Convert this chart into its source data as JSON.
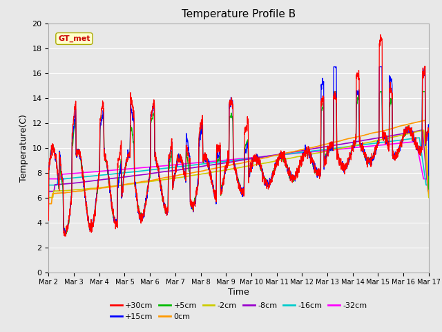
{
  "title": "Temperature Profile B",
  "xlabel": "Time",
  "ylabel": "Temperature(C)",
  "ylim": [
    0,
    20
  ],
  "background_color": "#e8e8e8",
  "grid_color": "white",
  "annotation_text": "GT_met",
  "annotation_bg": "#ffffcc",
  "annotation_fg": "#cc0000",
  "series_colors": {
    "+30cm": "#ff0000",
    "+15cm": "#0000ff",
    "+5cm": "#00bb00",
    "0cm": "#ff9900",
    "-2cm": "#cccc00",
    "-8cm": "#9900cc",
    "-16cm": "#00cccc",
    "-32cm": "#ff00ff"
  },
  "legend_labels": [
    "+30cm",
    "+15cm",
    "+5cm",
    "0cm",
    "-2cm",
    "-8cm",
    "-16cm",
    "-32cm"
  ],
  "x_tick_labels": [
    "Mar 2",
    "Mar 3",
    "Mar 4",
    "Mar 5",
    "Mar 6",
    "Mar 7",
    "Mar 8",
    "Mar 9",
    "Mar 10",
    "Mar 11",
    "Mar 12",
    "Mar 13",
    "Mar 14",
    "Mar 15",
    "Mar 16",
    "Mar 17"
  ],
  "n_points": 3000,
  "n_days": 15
}
